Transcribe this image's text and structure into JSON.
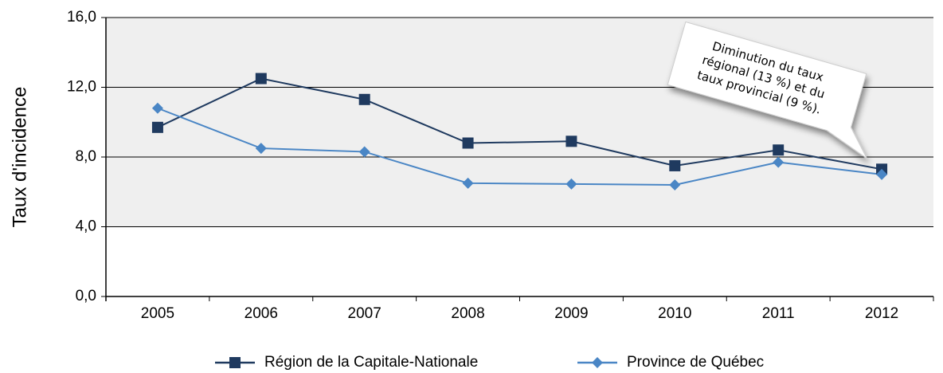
{
  "chart_data": {
    "type": "line",
    "y_label": "Taux d'incidence",
    "categories": [
      "2005",
      "2006",
      "2007",
      "2008",
      "2009",
      "2010",
      "2011",
      "2012"
    ],
    "series": [
      {
        "name": "Région de la Capitale-Nationale",
        "color": "#1f3a5f",
        "marker": "square",
        "values": [
          9.7,
          12.5,
          11.3,
          8.8,
          8.9,
          7.5,
          8.4,
          7.3
        ]
      },
      {
        "name": "Province de Québec",
        "color": "#4a86c5",
        "marker": "diamond",
        "values": [
          10.8,
          8.5,
          8.3,
          6.5,
          6.45,
          6.4,
          7.7,
          7.0
        ]
      }
    ],
    "ylim": [
      0,
      16
    ],
    "yticks": [
      {
        "value": 0,
        "label": "0,0"
      },
      {
        "value": 4,
        "label": "4,0"
      },
      {
        "value": 8,
        "label": "8,0"
      },
      {
        "value": 12,
        "label": "12,0"
      },
      {
        "value": 16,
        "label": "16,0"
      }
    ],
    "grid": true,
    "annotation": [
      "Diminution du taux",
      "régional (13 %) et du",
      "taux provincial (9 %)."
    ]
  }
}
